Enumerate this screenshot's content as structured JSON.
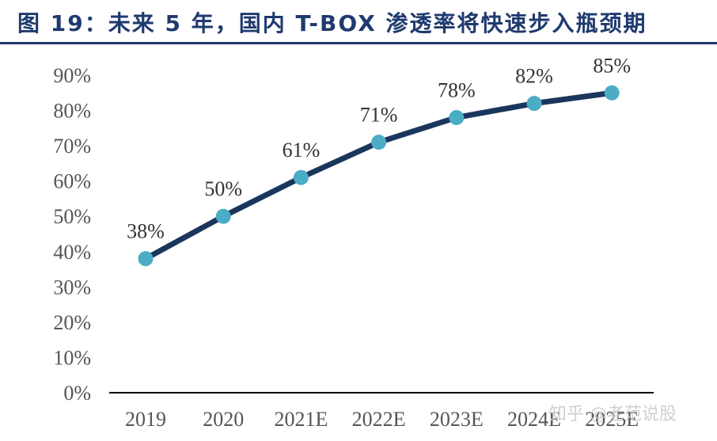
{
  "header": {
    "title": "图 19：未来 5 年，国内 T-BOX 渗透率将快速步入瓶颈期"
  },
  "watermark": "知乎 @老范说股",
  "chart_data": {
    "type": "line",
    "categories": [
      "2019",
      "2020",
      "2021E",
      "2022E",
      "2023E",
      "2024E",
      "2025E"
    ],
    "series": [
      {
        "values": [
          38,
          50,
          61,
          71,
          78,
          82,
          85
        ]
      }
    ],
    "data_labels": [
      "38%",
      "50%",
      "61%",
      "71%",
      "78%",
      "82%",
      "85%"
    ],
    "y_ticks": [
      "0%",
      "10%",
      "20%",
      "30%",
      "40%",
      "50%",
      "60%",
      "70%",
      "80%",
      "90%"
    ],
    "ylim": [
      0,
      90
    ],
    "grid": false,
    "legend": "none",
    "colors": {
      "line": "#1b365d",
      "marker": "#4bacc6",
      "axis": "#000000",
      "title": "#1f3a6e"
    }
  }
}
